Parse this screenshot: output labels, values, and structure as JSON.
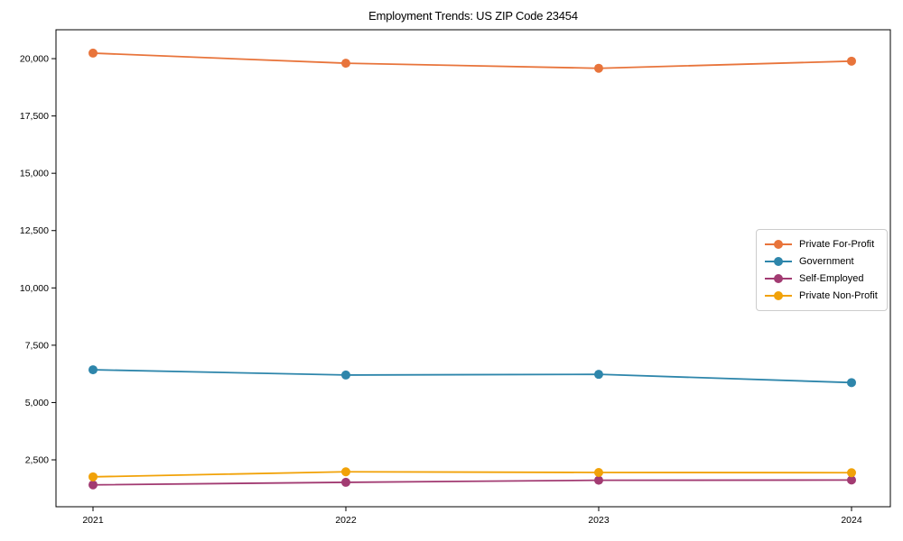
{
  "chart_data": {
    "type": "line",
    "title": "Employment Trends: US ZIP Code 23454",
    "xlabel": "",
    "ylabel": "",
    "categories": [
      "2021",
      "2022",
      "2023",
      "2024"
    ],
    "series": [
      {
        "name": "Private For-Profit",
        "color": "#E8743B",
        "values": [
          20240,
          19800,
          19580,
          19890
        ]
      },
      {
        "name": "Government",
        "color": "#2E86AB",
        "values": [
          6430,
          6200,
          6230,
          5870
        ]
      },
      {
        "name": "Self-Employed",
        "color": "#A23B72",
        "values": [
          1410,
          1520,
          1610,
          1620
        ]
      },
      {
        "name": "Private Non-Profit",
        "color": "#F1A208",
        "values": [
          1760,
          1980,
          1950,
          1940
        ]
      }
    ],
    "y_ticks": [
      2500,
      5000,
      7500,
      10000,
      12500,
      15000,
      17500,
      20000
    ],
    "y_tick_labels": [
      "2,500",
      "5,000",
      "7,500",
      "10,000",
      "12,500",
      "15,000",
      "17,500",
      "20,000"
    ],
    "ylim": [
      455,
      21260
    ],
    "grid": false,
    "legend_position": "center-right",
    "marker": "circle",
    "line_width": 1.8,
    "marker_radius": 5,
    "axis_color": "#000000"
  }
}
